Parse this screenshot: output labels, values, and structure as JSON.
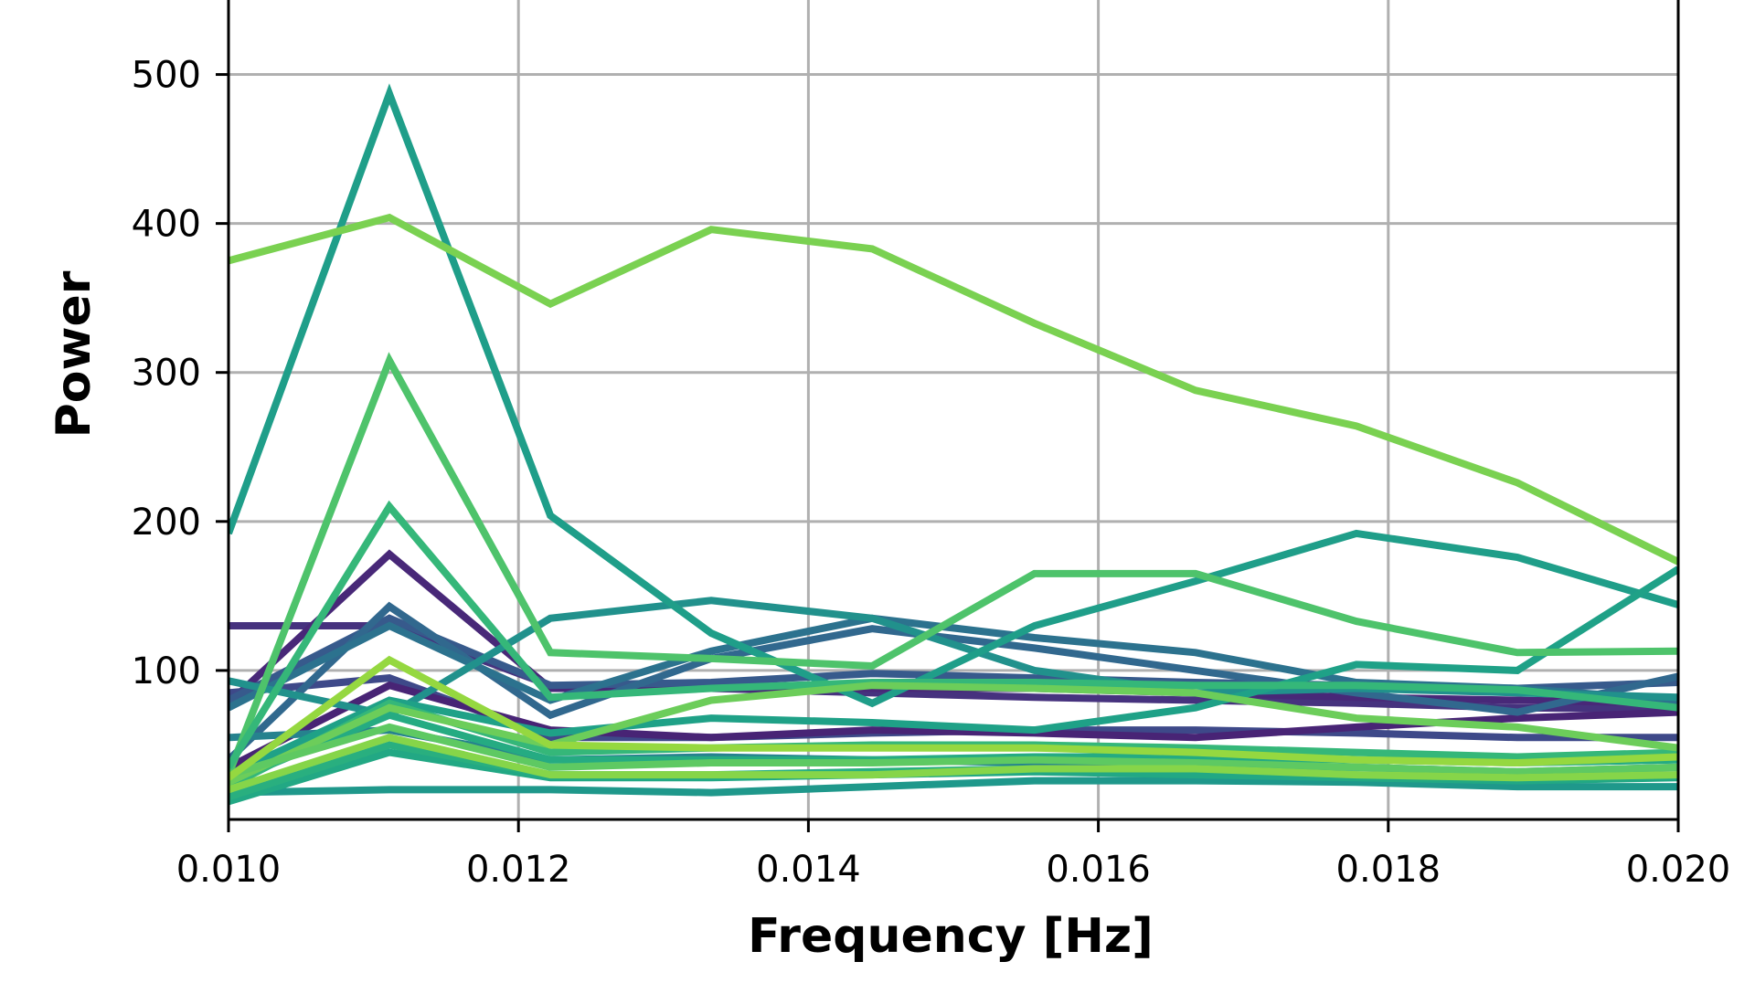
{
  "chart_data": {
    "type": "line",
    "title": "",
    "xlabel": "Frequency [Hz]",
    "ylabel": "Power",
    "xlim": [
      0.01,
      0.02
    ],
    "ylim": [
      0,
      550
    ],
    "grid": true,
    "legend": "none",
    "xticks": [
      0.01,
      0.012,
      0.014,
      0.016,
      0.018,
      0.02
    ],
    "xtick_labels": [
      "0.010",
      "0.012",
      "0.014",
      "0.016",
      "0.018",
      "0.020"
    ],
    "yticks": [
      100,
      200,
      300,
      400,
      500
    ],
    "ytick_labels": [
      "100",
      "200",
      "300",
      "400",
      "500"
    ],
    "x": [
      0.01,
      0.01111,
      0.01222,
      0.01333,
      0.01444,
      0.01556,
      0.01667,
      0.01778,
      0.01889,
      0.02
    ],
    "series": [
      {
        "color": "#46327e",
        "values": [
          130,
          130,
          90,
          88,
          85,
          82,
          80,
          78,
          75,
          74
        ]
      },
      {
        "color": "#482878",
        "values": [
          78,
          178,
          88,
          88,
          88,
          88,
          85,
          82,
          80,
          78
        ]
      },
      {
        "color": "#3e4989",
        "values": [
          85,
          95,
          55,
          55,
          58,
          60,
          60,
          58,
          55,
          55
        ]
      },
      {
        "color": "#482475",
        "values": [
          35,
          90,
          60,
          55,
          60,
          58,
          55,
          62,
          68,
          72
        ]
      },
      {
        "color": "#375a8c",
        "values": [
          80,
          135,
          90,
          92,
          98,
          95,
          92,
          90,
          88,
          92
        ]
      },
      {
        "color": "#31688e",
        "values": [
          40,
          143,
          70,
          108,
          128,
          115,
          100,
          85,
          72,
          96
        ]
      },
      {
        "color": "#2c728e",
        "values": [
          75,
          130,
          80,
          113,
          135,
          122,
          112,
          92,
          88,
          80
        ]
      },
      {
        "color": "#26828e",
        "values": [
          55,
          60,
          40,
          42,
          40,
          38,
          35,
          35,
          32,
          35
        ]
      },
      {
        "color": "#21918c",
        "values": [
          93,
          70,
          135,
          147,
          135,
          100,
          85,
          88,
          85,
          82
        ]
      },
      {
        "color": "#1f9e89",
        "values": [
          192,
          487,
          204,
          125,
          78,
          130,
          160,
          192,
          176,
          144
        ]
      },
      {
        "color": "#25ab82",
        "values": [
          25,
          70,
          40,
          40,
          40,
          42,
          42,
          40,
          38,
          40
        ]
      },
      {
        "color": "#1fa187",
        "values": [
          30,
          80,
          58,
          68,
          65,
          60,
          75,
          104,
          100,
          168
        ]
      },
      {
        "color": "#35b779",
        "values": [
          22,
          78,
          45,
          48,
          50,
          50,
          48,
          45,
          42,
          45
        ]
      },
      {
        "color": "#4ec36b",
        "values": [
          30,
          308,
          112,
          108,
          103,
          165,
          165,
          133,
          112,
          113
        ]
      },
      {
        "color": "#35b779",
        "values": [
          35,
          210,
          82,
          88,
          92,
          92,
          90,
          90,
          87,
          75
        ]
      },
      {
        "color": "#6ccd5a",
        "values": [
          25,
          75,
          50,
          80,
          90,
          88,
          85,
          68,
          62,
          48
        ]
      },
      {
        "color": "#5ec962",
        "values": [
          30,
          62,
          35,
          38,
          38,
          40,
          38,
          35,
          32,
          35
        ]
      },
      {
        "color": "#1f988b",
        "values": [
          18,
          20,
          20,
          18,
          22,
          26,
          26,
          25,
          22,
          22
        ]
      },
      {
        "color": "#22a884",
        "values": [
          12,
          45,
          28,
          28,
          30,
          32,
          30,
          28,
          26,
          28
        ]
      },
      {
        "color": "#29af7f",
        "values": [
          15,
          50,
          30,
          30,
          32,
          34,
          34,
          30,
          28,
          30
        ]
      },
      {
        "color": "#7ad151",
        "values": [
          375,
          404,
          346,
          396,
          383,
          333,
          288,
          264,
          226,
          173
        ]
      },
      {
        "color": "#95d840",
        "values": [
          28,
          107,
          50,
          48,
          48,
          48,
          45,
          40,
          38,
          42
        ]
      },
      {
        "color": "#86d549",
        "values": [
          20,
          55,
          30,
          30,
          30,
          34,
          34,
          30,
          28,
          30
        ]
      }
    ]
  }
}
